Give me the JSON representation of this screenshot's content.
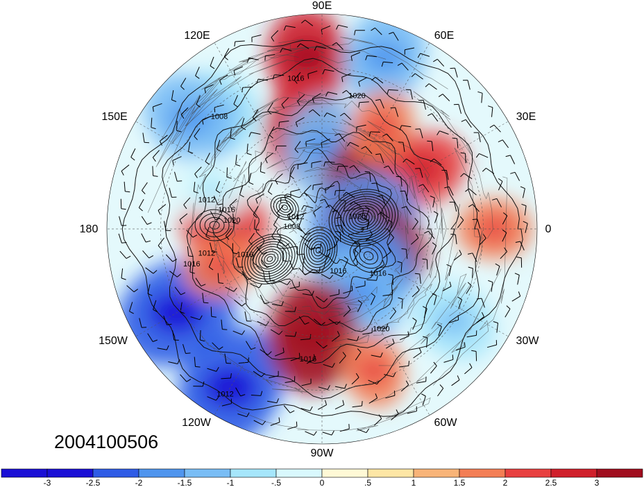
{
  "date_stamp": "2004100506",
  "longitude_labels": {
    "top": "90E",
    "upper_left": "120E",
    "upper_right": "60E",
    "left_upper": "150E",
    "right_upper": "30E",
    "left": "180",
    "right": "0",
    "left_lower": "150W",
    "right_lower": "30W",
    "lower_left": "120W",
    "lower_right": "60W",
    "bottom": "90W"
  },
  "contour_labels": [
    "1016",
    "1020",
    "1008",
    "1012",
    "1016",
    "1020",
    "1012",
    "1016",
    "1016",
    "1008",
    "1012",
    "1020",
    "1016",
    "1020",
    "1016",
    "1016",
    "1012"
  ],
  "colorbar": {
    "ticks": [
      "-3",
      "-2.5",
      "-2",
      "-1.5",
      "-1",
      "-.5",
      "0",
      ".5",
      "1",
      "1.5",
      "2",
      "2.5",
      "3"
    ],
    "colors": [
      "#1a0fd6",
      "#2f5ce6",
      "#4f95ee",
      "#79bdf5",
      "#a6e6fb",
      "#d9f8fd",
      "#fff9d6",
      "#fde6a5",
      "#f8b478",
      "#f37e55",
      "#e84040",
      "#d01f2b",
      "#a10d1e"
    ]
  },
  "anomaly_blobs": [
    {
      "lon": 95,
      "r": 0.8,
      "value": 2.0
    },
    {
      "lon": 70,
      "r": 0.85,
      "value": -2.0
    },
    {
      "lon": 130,
      "r": 0.72,
      "value": -1.5
    },
    {
      "lon": 140,
      "r": 0.8,
      "value": -2.0
    },
    {
      "lon": 100,
      "r": 0.45,
      "value": 2.0
    },
    {
      "lon": 88,
      "r": 0.38,
      "value": -2.0
    },
    {
      "lon": 45,
      "r": 0.33,
      "value": 2.5
    },
    {
      "lon": 30,
      "r": 0.55,
      "value": 1.5
    },
    {
      "lon": 15,
      "r": 0.2,
      "value": -2.5
    },
    {
      "lon": -20,
      "r": 0.25,
      "value": 2.5
    },
    {
      "lon": -40,
      "r": 0.25,
      "value": -2.5
    },
    {
      "lon": -60,
      "r": 0.35,
      "value": -2.0
    },
    {
      "lon": -150,
      "r": 0.78,
      "value": -3.0
    },
    {
      "lon": -120,
      "r": 0.85,
      "value": -3.0
    },
    {
      "lon": -95,
      "r": 0.5,
      "value": 2.5
    },
    {
      "lon": 178,
      "r": 0.45,
      "value": 1.5
    },
    {
      "lon": -35,
      "r": 0.75,
      "value": -1.5
    },
    {
      "lon": 0,
      "r": 0.8,
      "value": 1.0
    },
    {
      "lon": 60,
      "r": 0.55,
      "value": 1.0
    },
    {
      "lon": -70,
      "r": 0.7,
      "value": 1.0
    },
    {
      "lon": 160,
      "r": 0.55,
      "value": -1.0
    },
    {
      "lon": -160,
      "r": 0.5,
      "value": 1.0
    }
  ],
  "pressure_centers": [
    {
      "lon": 15,
      "r": 0.2,
      "kind": "low",
      "rings": 12
    },
    {
      "lon": -150,
      "r": 0.28,
      "kind": "low",
      "rings": 10
    },
    {
      "lon": -100,
      "r": 0.1,
      "kind": "low",
      "rings": 8
    },
    {
      "lon": 150,
      "r": 0.2,
      "kind": "low",
      "rings": 5
    },
    {
      "lon": -30,
      "r": 0.25,
      "kind": "high",
      "rings": 4
    },
    {
      "lon": 178,
      "r": 0.5,
      "kind": "high",
      "rings": 4
    }
  ]
}
